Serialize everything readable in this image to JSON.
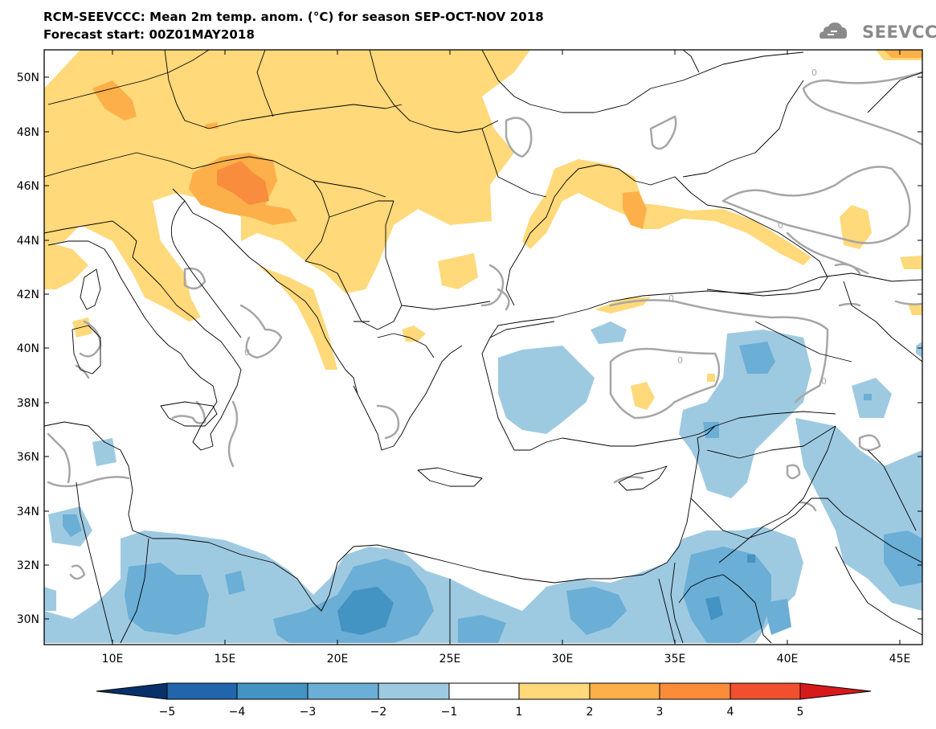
{
  "header": {
    "title_line1": "RCM-SEEVCCC: Mean 2m temp. anom. (°C) for season SEP-OCT-NOV 2018",
    "title_line2": "Forecast start: 00Z01MAY2018",
    "logo_text": "SEEVCCC"
  },
  "map": {
    "lat_labels": [
      "50N",
      "48N",
      "46N",
      "44N",
      "42N",
      "40N",
      "38N",
      "36N",
      "34N",
      "32N",
      "30N"
    ],
    "lon_labels": [
      "10E",
      "15E",
      "20E",
      "25E",
      "30E",
      "35E",
      "40E",
      "45E"
    ],
    "zero_contour_labels": [
      "0",
      "0",
      "0",
      "0",
      "0",
      "0"
    ]
  },
  "colorbar": {
    "labels": [
      "−5",
      "−4",
      "−3",
      "−2",
      "−1",
      "1",
      "2",
      "3",
      "4",
      "5"
    ],
    "colors": [
      "#08306b",
      "#2166ac",
      "#4393c3",
      "#6baed6",
      "#9ecae1",
      "#ffffff",
      "#ffd97a",
      "#fdb04a",
      "#fc8b3a",
      "#f15030",
      "#d7191c"
    ]
  },
  "palette": {
    "warm1": "#ffd97a",
    "warm2": "#fdb04a",
    "warm3": "#f98d3e",
    "cool1": "#9ecae1",
    "cool2": "#6baed6",
    "cool3": "#4393c3",
    "zero_contour": "#a6a6a6"
  }
}
